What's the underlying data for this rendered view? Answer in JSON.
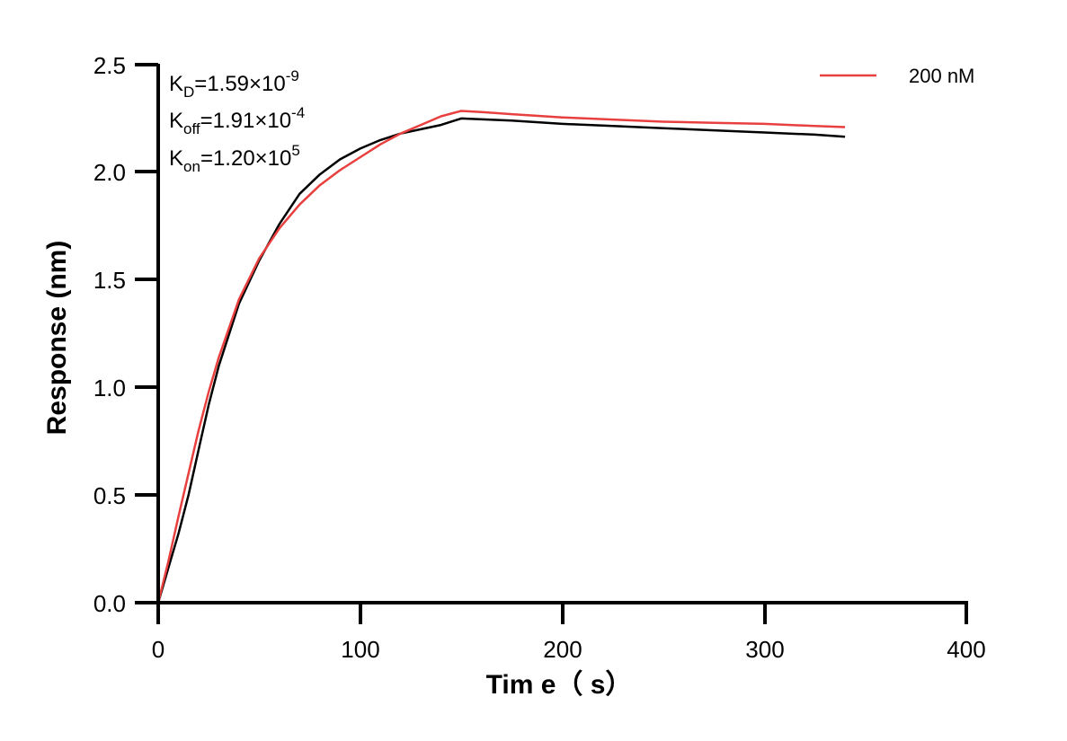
{
  "chart_data": {
    "type": "line",
    "xlabel": "Tim e（ s）",
    "ylabel": "Response (nm)",
    "xlim": [
      0,
      400
    ],
    "ylim": [
      0,
      2.5
    ],
    "x_ticks": [
      "0",
      "100",
      "200",
      "300",
      "400"
    ],
    "y_ticks": [
      "0.0",
      "0.5",
      "1.0",
      "1.5",
      "2.0",
      "2.5"
    ],
    "grid": false,
    "legend_position": "top-right",
    "annotations": {
      "kd": {
        "sym": "K",
        "sub": "D",
        "val": "=1.59×10",
        "exp": "-9"
      },
      "koff": {
        "sym": "K",
        "sub": "off",
        "val": "=1.91×10",
        "exp": "-4"
      },
      "kon": {
        "sym": "K",
        "sub": "on",
        "val": "=1.20×10",
        "exp": "5"
      }
    },
    "series": [
      {
        "name": "200 nM",
        "color": "#e8403f",
        "x": [
          0,
          5,
          10,
          15,
          20,
          25,
          30,
          40,
          50,
          60,
          70,
          80,
          90,
          100,
          110,
          120,
          130,
          140,
          150,
          160,
          175,
          200,
          225,
          250,
          275,
          300,
          325,
          340
        ],
        "y": [
          0.0,
          0.19,
          0.4,
          0.6,
          0.8,
          0.98,
          1.14,
          1.41,
          1.6,
          1.74,
          1.85,
          1.94,
          2.01,
          2.07,
          2.13,
          2.18,
          2.22,
          2.26,
          2.285,
          2.28,
          2.27,
          2.255,
          2.245,
          2.235,
          2.23,
          2.225,
          2.215,
          2.21
        ]
      },
      {
        "name": "",
        "color": "#000000",
        "x": [
          0,
          5,
          10,
          15,
          20,
          25,
          30,
          40,
          50,
          60,
          70,
          80,
          90,
          100,
          110,
          120,
          130,
          140,
          150,
          175,
          200,
          225,
          250,
          275,
          300,
          325,
          340
        ],
        "y": [
          0.0,
          0.16,
          0.32,
          0.5,
          0.71,
          0.92,
          1.1,
          1.39,
          1.59,
          1.76,
          1.9,
          1.99,
          2.06,
          2.11,
          2.15,
          2.18,
          2.2,
          2.22,
          2.25,
          2.24,
          2.225,
          2.215,
          2.205,
          2.195,
          2.185,
          2.175,
          2.165
        ]
      }
    ]
  }
}
